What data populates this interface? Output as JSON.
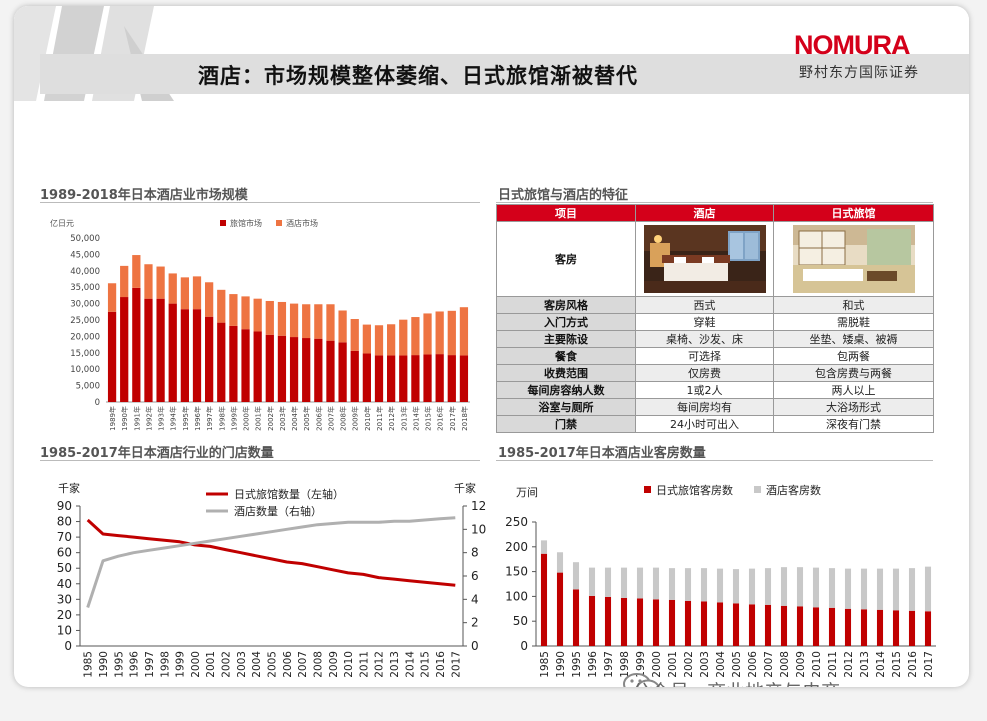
{
  "header": {
    "title": "酒店：市场规模整体萎缩、日式旅馆渐被替代",
    "logo": "NOMURA",
    "logo_sub": "野村东方国际证券",
    "brand_color": "#d4001a"
  },
  "watermark": "公众号 · 商业地产与电商",
  "table": {
    "title": "日式旅馆与酒店的特征",
    "headers": [
      "项目",
      "酒店",
      "日式旅馆"
    ],
    "room_label": "客房",
    "rows": [
      {
        "label": "客房风格",
        "hotel": "西式",
        "ryokan": "和式"
      },
      {
        "label": "入门方式",
        "hotel": "穿鞋",
        "ryokan": "需脱鞋"
      },
      {
        "label": "主要陈设",
        "hotel": "桌椅、沙发、床",
        "ryokan": "坐垫、矮桌、被褥"
      },
      {
        "label": "餐食",
        "hotel": "可选择",
        "ryokan": "包两餐"
      },
      {
        "label": "收费范围",
        "hotel": "仅房费",
        "ryokan": "包含房费与两餐"
      },
      {
        "label": "每间房容纳人数",
        "hotel": "1或2人",
        "ryokan": "两人以上"
      },
      {
        "label": "浴室与厕所",
        "hotel": "每间房均有",
        "ryokan": "大浴场形式"
      },
      {
        "label": "门禁",
        "hotel": "24小时可出入",
        "ryokan": "深夜有门禁"
      }
    ]
  },
  "chart_data": [
    {
      "id": "market-size",
      "type": "bar",
      "stacked": true,
      "title": "1989-2018年日本酒店业市场规模",
      "unit_label": "亿日元",
      "ylim": [
        0,
        50000
      ],
      "yticks": [
        "0",
        "5,000",
        "10,000",
        "15,000",
        "20,000",
        "25,000",
        "30,000",
        "35,000",
        "40,000",
        "45,000",
        "50,000"
      ],
      "categories": [
        "1989年",
        "1990年",
        "1991年",
        "1992年",
        "1993年",
        "1994年",
        "1995年",
        "1996年",
        "1997年",
        "1998年",
        "1999年",
        "2000年",
        "2001年",
        "2002年",
        "2003年",
        "2004年",
        "2005年",
        "2006年",
        "2007年",
        "2008年",
        "2009年",
        "2010年",
        "2011年",
        "2012年",
        "2013年",
        "2014年",
        "2015年",
        "2016年",
        "2017年",
        "2018年"
      ],
      "series": [
        {
          "name": "旅馆市场",
          "color": "#c00000",
          "values": [
            27500,
            32000,
            34800,
            31500,
            31500,
            30000,
            28300,
            28300,
            26000,
            24200,
            23200,
            22200,
            21500,
            20500,
            20200,
            19800,
            19500,
            19300,
            18700,
            18200,
            15600,
            14800,
            14200,
            14200,
            14200,
            14300,
            14500,
            14600,
            14300,
            14200
          ]
        },
        {
          "name": "酒店市场",
          "color": "#ee7442",
          "values": [
            8700,
            9500,
            10000,
            10500,
            9800,
            9200,
            9700,
            10000,
            10500,
            10000,
            9700,
            10000,
            10000,
            10300,
            10300,
            10200,
            10300,
            10500,
            11100,
            9700,
            9700,
            8800,
            9200,
            9500,
            10900,
            11600,
            12500,
            13000,
            13500,
            14700
          ]
        }
      ]
    },
    {
      "id": "store-count",
      "type": "line",
      "title": "1985-2017年日本酒店行业的门店数量",
      "left_unit": "千家",
      "right_unit": "千家",
      "ylim_left": [
        0,
        90
      ],
      "ylim_right": [
        0,
        12
      ],
      "yticks_left": [
        "0",
        "10",
        "20",
        "30",
        "40",
        "50",
        "60",
        "70",
        "80",
        "90"
      ],
      "yticks_right": [
        "0",
        "2",
        "4",
        "6",
        "8",
        "10",
        "12"
      ],
      "x": [
        "1985",
        "1990",
        "1995",
        "1996",
        "1997",
        "1998",
        "1999",
        "2000",
        "2001",
        "2002",
        "2003",
        "2004",
        "2005",
        "2006",
        "2007",
        "2008",
        "2009",
        "2010",
        "2011",
        "2012",
        "2013",
        "2014",
        "2015",
        "2016",
        "2017"
      ],
      "series": [
        {
          "name": "日式旅馆数量（左轴）",
          "axis": "left",
          "color": "#c00000",
          "values": [
            81,
            72,
            71,
            70,
            69,
            68,
            67,
            65,
            64,
            62,
            60,
            58,
            56,
            54,
            53,
            51,
            49,
            47,
            46,
            44,
            43,
            42,
            41,
            40,
            39
          ]
        },
        {
          "name": "酒店数量（右轴）",
          "axis": "right",
          "color": "#b0b0b0",
          "values": [
            3.3,
            7.3,
            7.7,
            8.0,
            8.2,
            8.4,
            8.6,
            8.8,
            9.0,
            9.2,
            9.4,
            9.6,
            9.8,
            10.0,
            10.2,
            10.4,
            10.5,
            10.6,
            10.6,
            10.6,
            10.7,
            10.7,
            10.8,
            10.9,
            11.0
          ]
        }
      ]
    },
    {
      "id": "room-count",
      "type": "bar",
      "stacked": true,
      "title": "1985-2017年日本酒店业客房数量",
      "unit_label": "万间",
      "ylim": [
        0,
        250
      ],
      "yticks": [
        "0",
        "50",
        "100",
        "150",
        "200",
        "250"
      ],
      "categories": [
        "1985",
        "1990",
        "1995",
        "1996",
        "1997",
        "1998",
        "1999",
        "2000",
        "2001",
        "2002",
        "2003",
        "2004",
        "2005",
        "2006",
        "2007",
        "2008",
        "2009",
        "2010",
        "2011",
        "2012",
        "2013",
        "2014",
        "2015",
        "2016",
        "2017"
      ],
      "series": [
        {
          "name": "日式旅馆客房数",
          "color": "#c00000",
          "values": [
            186,
            148,
            114,
            101,
            99,
            97,
            96,
            94,
            93,
            91,
            90,
            88,
            86,
            84,
            83,
            81,
            80,
            78,
            77,
            75,
            74,
            73,
            72,
            71,
            70
          ]
        },
        {
          "name": "酒店客房数",
          "color": "#c8c8c8",
          "values": [
            27,
            41,
            55,
            57,
            59,
            61,
            62,
            64,
            64,
            66,
            67,
            68,
            69,
            72,
            74,
            78,
            79,
            80,
            80,
            81,
            82,
            83,
            84,
            86,
            90
          ]
        }
      ]
    }
  ]
}
